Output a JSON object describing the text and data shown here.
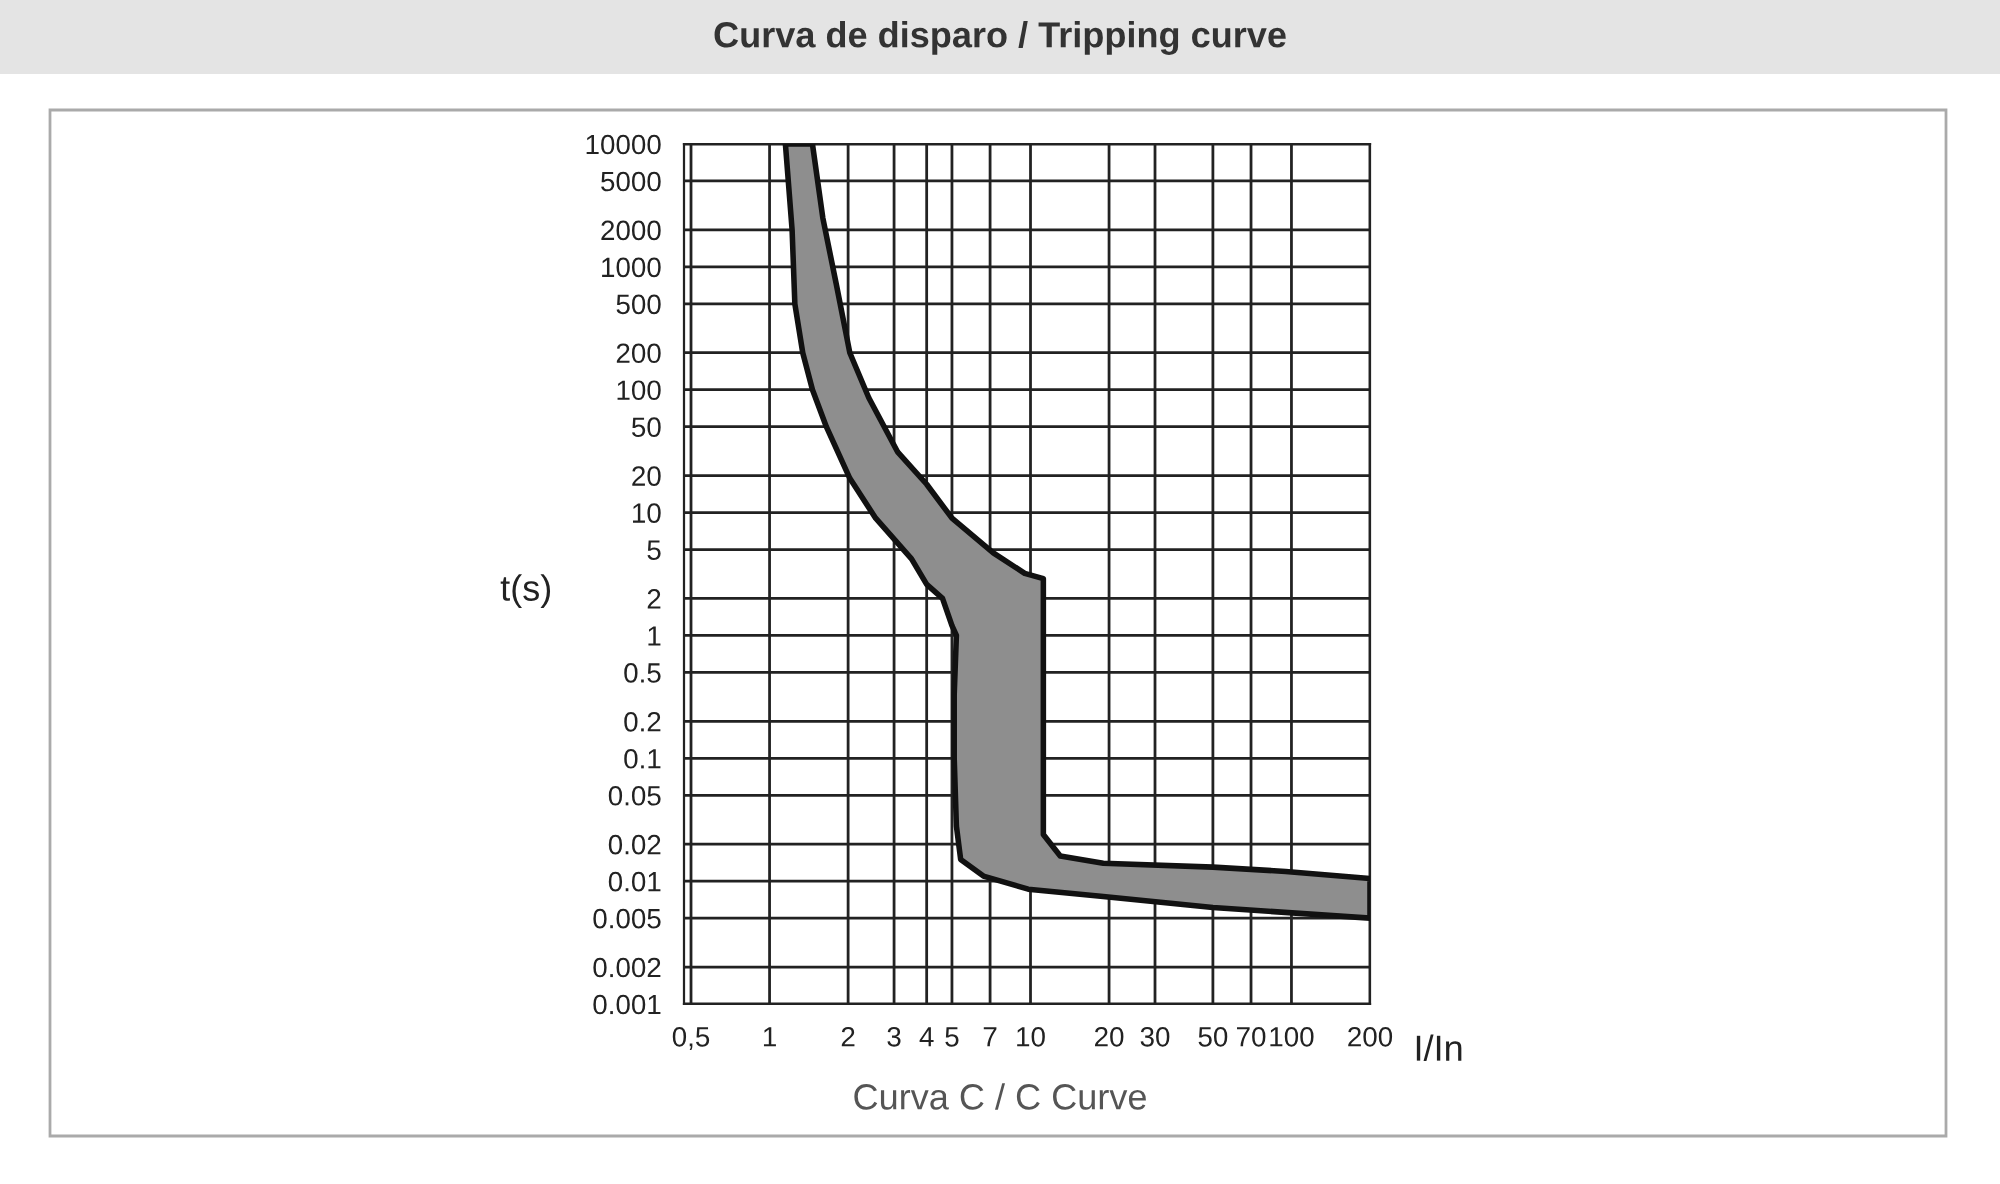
{
  "chart_data": {
    "type": "area",
    "title": "Curva de disparo / Tripping curve",
    "subtitle": "Curva C / C Curve",
    "xlabel": "I/In",
    "ylabel": "t(s)",
    "log": "xy",
    "grid": true,
    "xlim": [
      0.47,
      200
    ],
    "ylim": [
      0.001,
      10000
    ],
    "xticks": [
      {
        "value": 0.5,
        "label": "0,5"
      },
      1,
      2,
      3,
      4,
      5,
      7,
      10,
      20,
      30,
      50,
      70,
      100,
      200
    ],
    "yticks": [
      0.001,
      0.002,
      0.005,
      0.01,
      0.02,
      0.05,
      0.1,
      0.2,
      0.5,
      1,
      2,
      5,
      10,
      20,
      50,
      100,
      200,
      500,
      1000,
      2000,
      5000,
      10000
    ],
    "series": [
      {
        "color": "#8e8e8e",
        "x": [
          1.15,
          1.22,
          1.25,
          1.34,
          1.46,
          1.65,
          2.03,
          2.55,
          3.5,
          4,
          4.6,
          5.0,
          5.2,
          5.1,
          5.1,
          5.2,
          5.4,
          6.6,
          9.8,
          19,
          50,
          200,
          200,
          95,
          50,
          19,
          13,
          11.2,
          11.2,
          11.2,
          11.2,
          9.5,
          7.2,
          5,
          4,
          3.1,
          2.4,
          2.03,
          1.8,
          1.6,
          1.46
        ],
        "values": [
          10000,
          2000,
          500,
          200,
          100,
          50,
          19,
          9,
          4.2,
          2.6,
          2,
          1.2,
          1,
          0.33,
          0.1,
          0.028,
          0.015,
          0.011,
          0.0086,
          0.0075,
          0.0061,
          0.005,
          0.0105,
          0.012,
          0.013,
          0.014,
          0.016,
          0.024,
          0.1,
          0.93,
          2.9,
          3.2,
          4.7,
          9,
          17,
          31,
          86,
          200,
          730,
          2500,
          10000
        ]
      }
    ]
  }
}
